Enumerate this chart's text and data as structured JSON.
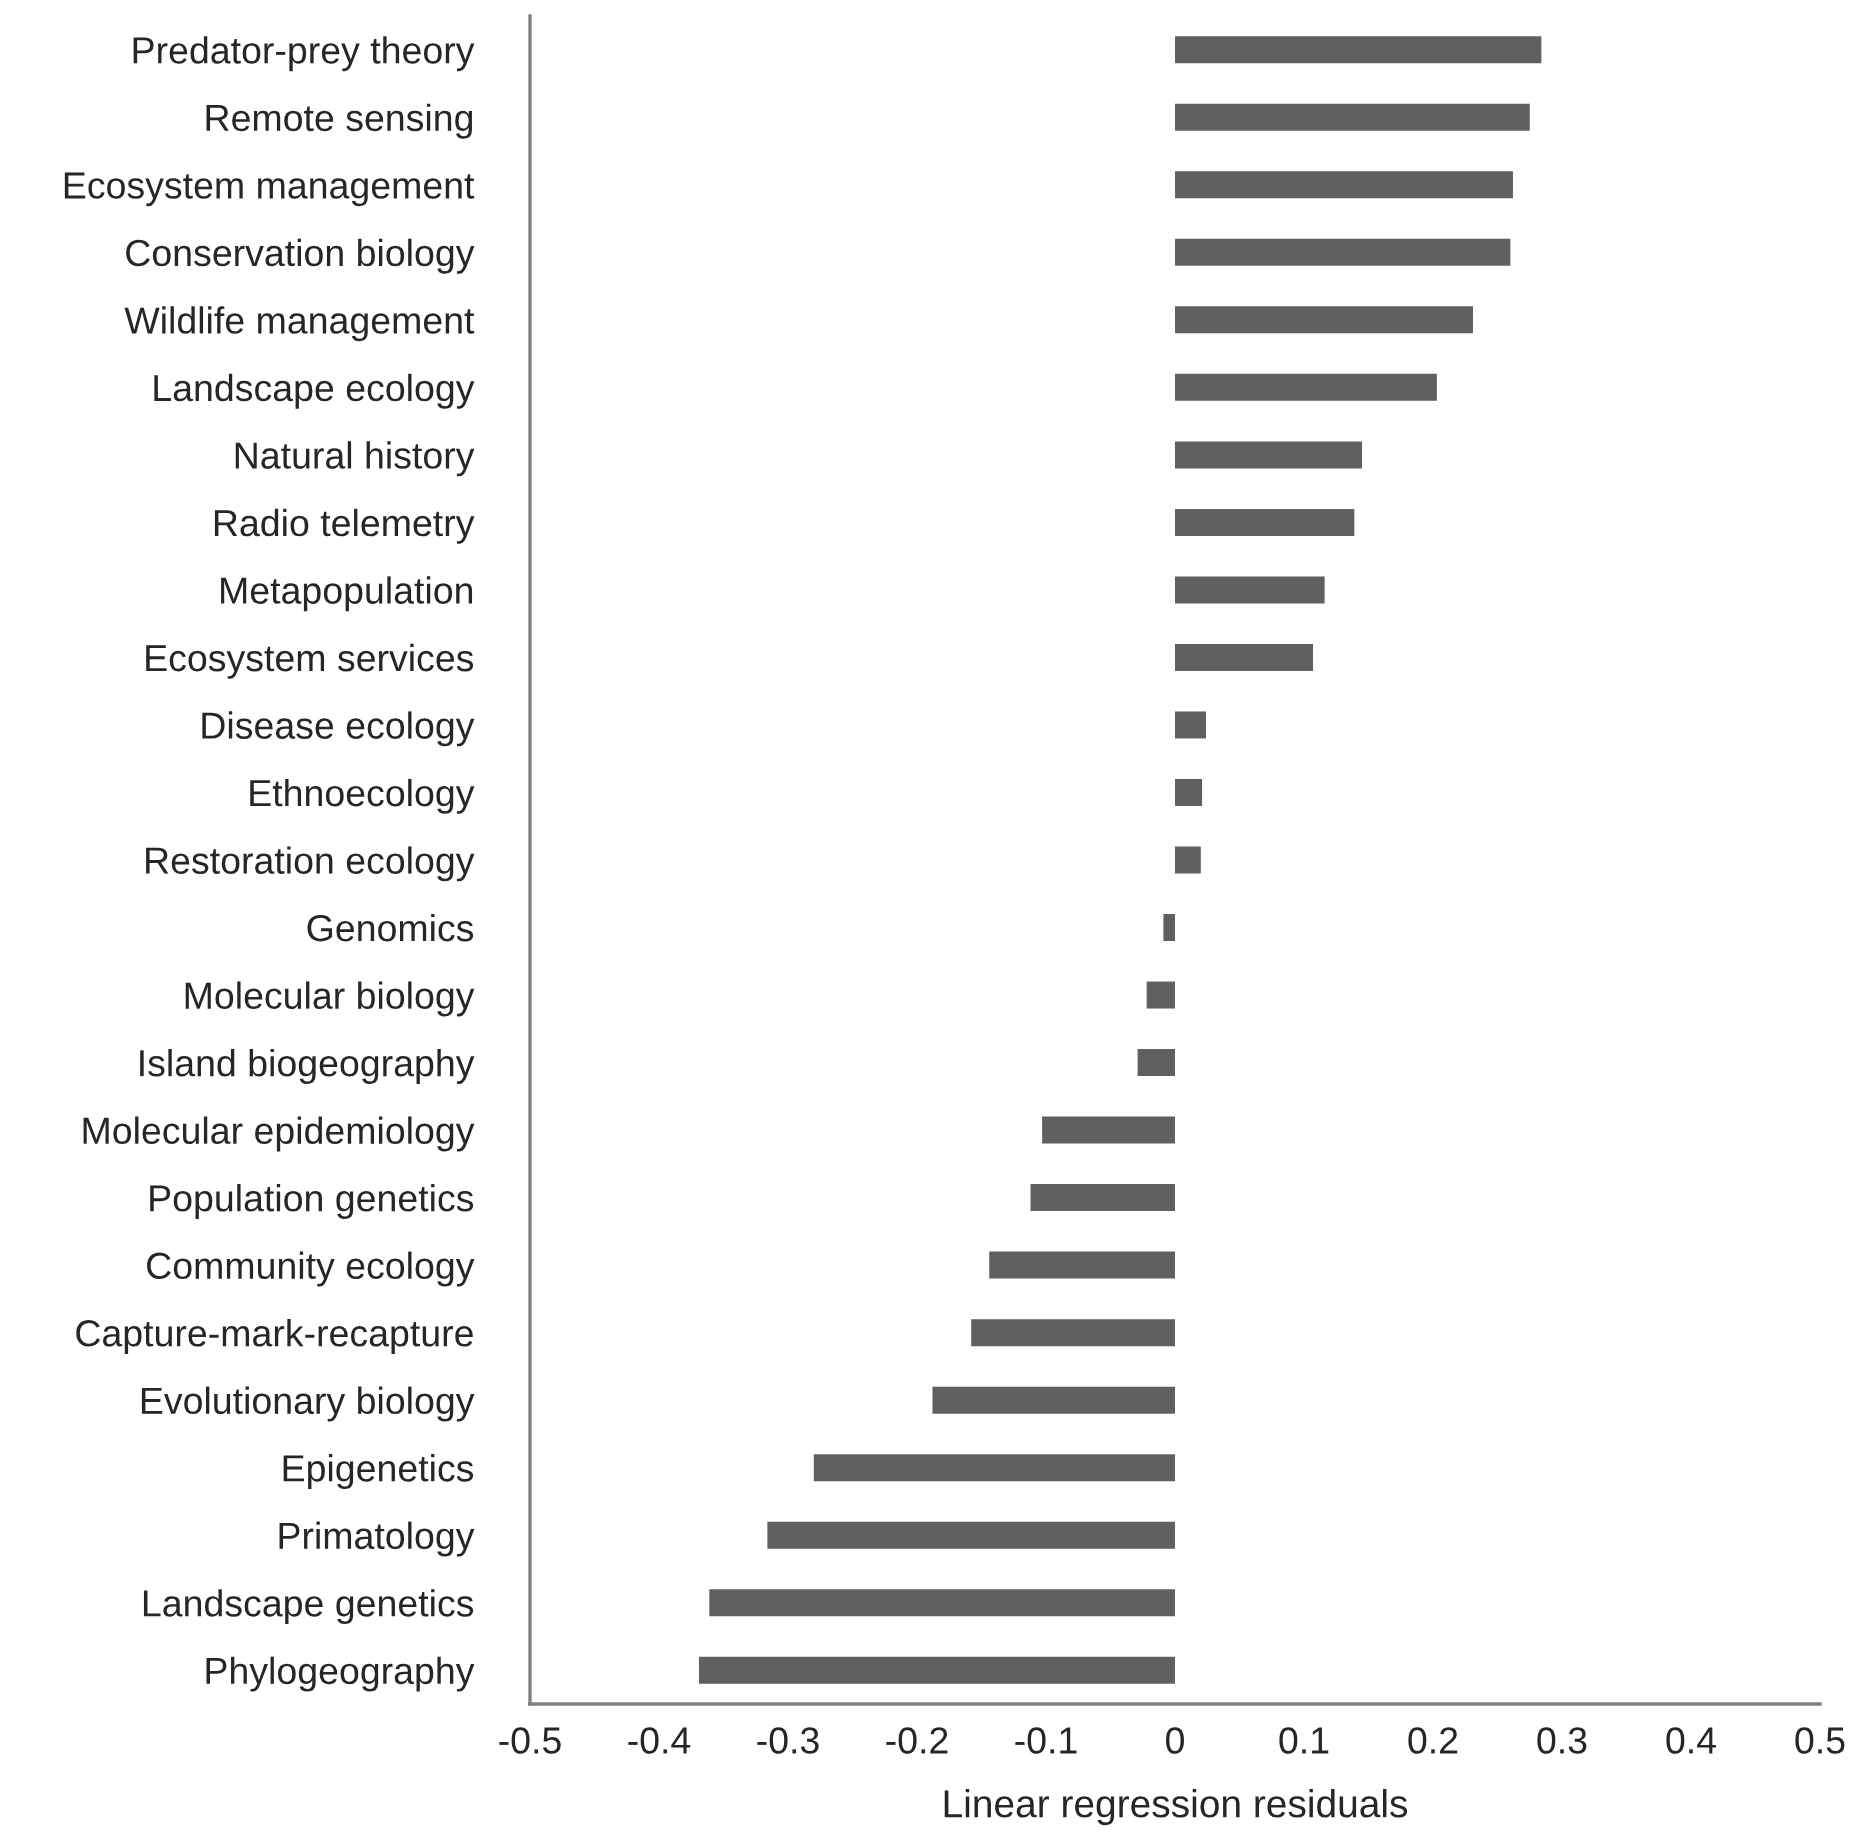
{
  "chart_data": {
    "type": "bar",
    "orientation": "horizontal",
    "xlabel": "Linear regression residuals",
    "categories": [
      "Predator-prey theory",
      "Remote sensing",
      "Ecosystem management",
      "Conservation biology",
      "Wildlife management",
      "Landscape ecology",
      "Natural history",
      "Radio telemetry",
      "Metapopulation",
      "Ecosystem services",
      "Disease ecology",
      "Ethnoecology",
      "Restoration ecology",
      "Genomics",
      "Molecular biology",
      "Island biogeography",
      "Molecular epidemiology",
      "Population genetics",
      "Community ecology",
      "Capture-mark-recapture",
      "Evolutionary biology",
      "Epigenetics",
      "Primatology",
      "Landscape genetics",
      "Phylogeography"
    ],
    "values": [
      0.284,
      0.275,
      0.262,
      0.26,
      0.231,
      0.203,
      0.145,
      0.139,
      0.116,
      0.107,
      0.024,
      0.021,
      0.02,
      -0.009,
      -0.022,
      -0.029,
      -0.103,
      -0.112,
      -0.144,
      -0.158,
      -0.188,
      -0.28,
      -0.316,
      -0.361,
      -0.369
    ],
    "color": "#606060",
    "xlim": [
      -0.5,
      0.5
    ],
    "xticks": [
      -0.5,
      -0.4,
      -0.3,
      -0.2,
      -0.1,
      0,
      0.1,
      0.2,
      0.3,
      0.4,
      0.5
    ],
    "grid": false,
    "legend": false
  }
}
